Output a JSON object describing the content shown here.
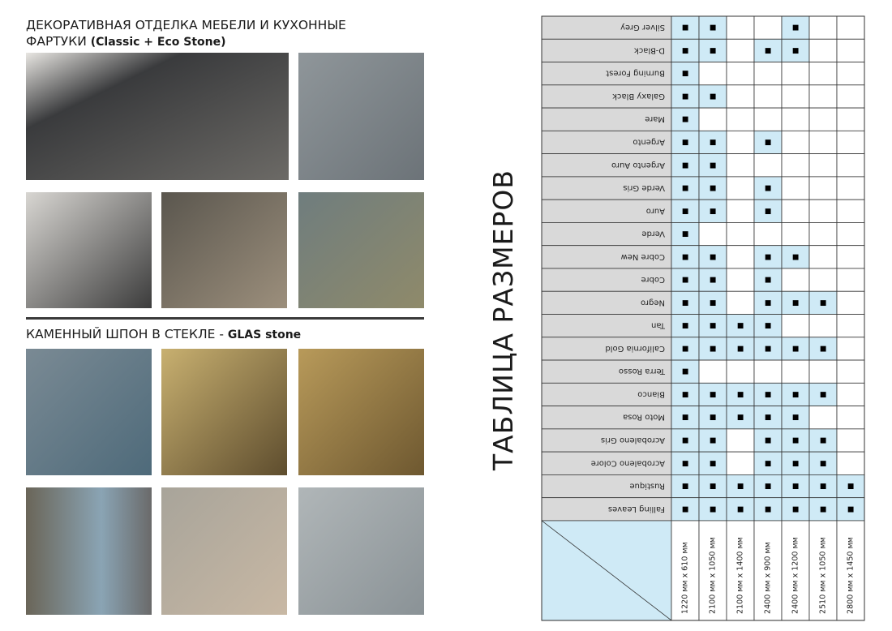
{
  "header": {
    "title_line1": "ДЕКОРАТИВНАЯ ОТДЕЛКА МЕБЕЛИ И КУХОННЫЕ",
    "title_line2": "ФАРТУКИ",
    "title_line2_bold": "(Classic + Eco Stone)"
  },
  "section2": {
    "title": "КАМЕННЫЙ ШПОН В СТЕКЛЕ -",
    "title_bold": "GLAS stone"
  },
  "side_title": "ТАБЛИЦА РАЗМЕРОВ",
  "table": {
    "columns": [
      "1220 мм x 610 мм",
      "2100 мм x 1050 мм",
      "2100 мм x 1400 мм",
      "2400 мм x 900 мм",
      "2400 мм x 1200 мм",
      "2510 мм x 1050 мм",
      "2800 мм x 1450 мм"
    ],
    "rows": [
      {
        "name": "Silver Grey",
        "cells": [
          "■",
          "■",
          null,
          null,
          "■",
          null,
          null
        ]
      },
      {
        "name": "D-Black",
        "cells": [
          "■",
          "■",
          null,
          "■",
          "■",
          null,
          null
        ]
      },
      {
        "name": "Burning Forest",
        "cells": [
          "■",
          null,
          null,
          null,
          null,
          null,
          null
        ]
      },
      {
        "name": "Galaxy Black",
        "cells": [
          "■",
          "■",
          null,
          null,
          null,
          null,
          null
        ]
      },
      {
        "name": "Mare",
        "cells": [
          "■",
          null,
          null,
          null,
          null,
          null,
          null
        ]
      },
      {
        "name": "Argento",
        "cells": [
          "■",
          "■",
          null,
          "■",
          null,
          null,
          null
        ]
      },
      {
        "name": "Argento Auro",
        "cells": [
          "■",
          "■",
          null,
          null,
          null,
          null,
          null
        ]
      },
      {
        "name": "Verde Gris",
        "cells": [
          "■",
          "■",
          null,
          "■",
          null,
          null,
          null
        ]
      },
      {
        "name": "Auro",
        "cells": [
          "■",
          "■",
          null,
          "■",
          null,
          null,
          null
        ]
      },
      {
        "name": "Verde",
        "cells": [
          "■",
          null,
          null,
          null,
          null,
          null,
          null
        ]
      },
      {
        "name": "Cobre New",
        "cells": [
          "■",
          "■",
          null,
          "■",
          "■",
          null,
          null
        ]
      },
      {
        "name": "Cobre",
        "cells": [
          "■",
          "■",
          null,
          "■",
          null,
          null,
          null
        ]
      },
      {
        "name": "Negro",
        "cells": [
          "■",
          "■",
          null,
          "■",
          "■",
          "■",
          null
        ]
      },
      {
        "name": "Tan",
        "cells": [
          "■",
          "■",
          "■",
          "■",
          null,
          null,
          null
        ]
      },
      {
        "name": "California Gold",
        "cells": [
          "■",
          "■",
          "■",
          "■",
          "■",
          "■",
          null
        ]
      },
      {
        "name": "Terra Rosso",
        "cells": [
          "■",
          null,
          null,
          null,
          null,
          null,
          null
        ]
      },
      {
        "name": "Bianco",
        "cells": [
          "■",
          "■",
          "■",
          "■",
          "■",
          "■",
          null
        ]
      },
      {
        "name": "Moto Rosa",
        "cells": [
          "■",
          "■",
          "■",
          "■",
          "■",
          null,
          null
        ]
      },
      {
        "name": "Acrobaleno Gris",
        "cells": [
          "■",
          "■",
          null,
          "■",
          "■",
          "■",
          null
        ]
      },
      {
        "name": "Acrobaleno Colore",
        "cells": [
          "■",
          "■",
          null,
          "■",
          "■",
          "■",
          null
        ]
      },
      {
        "name": "Rustique",
        "cells": [
          "■",
          "■",
          "■",
          "■",
          "■",
          "■",
          "■"
        ]
      },
      {
        "name": "Falling Leaves",
        "cells": [
          "■",
          "■",
          "■",
          "■",
          "■",
          "■",
          "■"
        ]
      }
    ]
  }
}
